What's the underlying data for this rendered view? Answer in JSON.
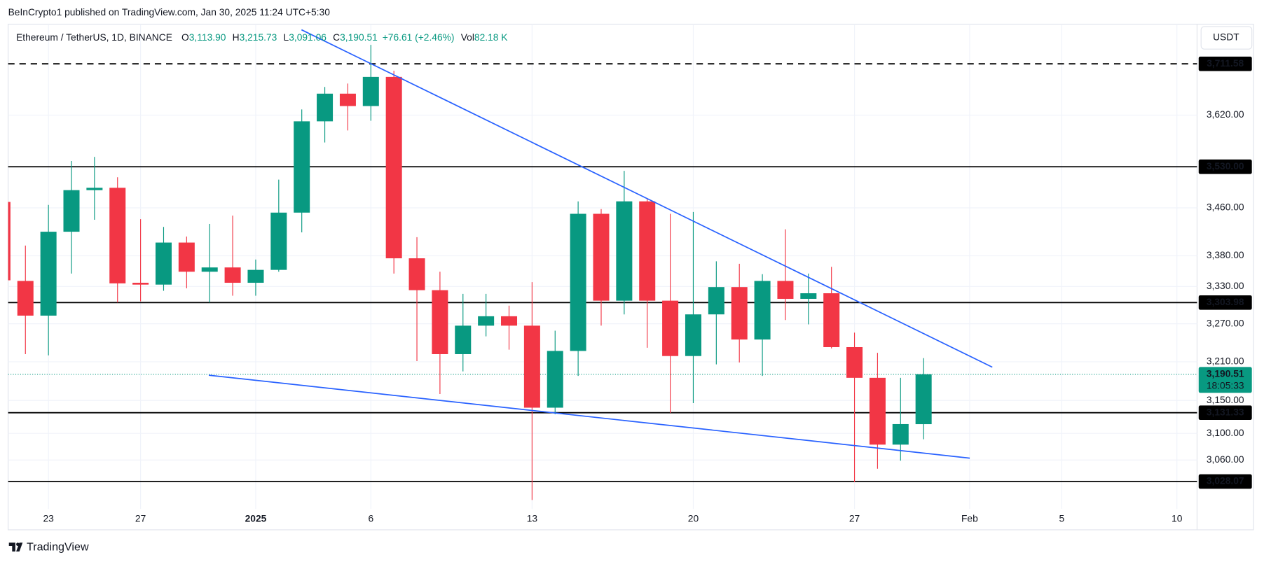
{
  "header": {
    "published": "BeInCrypto1 published on TradingView.com, Jan 30, 2025 11:24 UTC+5:30",
    "currency_button": "USDT",
    "brand": "TradingView"
  },
  "chart_data": {
    "type": "candlestick",
    "symbol": "Ethereum / TetherUS, 1D, BINANCE",
    "ohlc_legend": [
      {
        "key": "O",
        "value": "3,113.90"
      },
      {
        "key": "H",
        "value": "3,215.73"
      },
      {
        "key": "L",
        "value": "3,091.06"
      },
      {
        "key": "C",
        "value": "3,190.51"
      }
    ],
    "change": "+76.61 (+2.46%)",
    "volume": {
      "key": "Vol",
      "value": "82.18 K"
    },
    "categories": [
      null,
      null,
      "23",
      null,
      null,
      null,
      "27",
      null,
      null,
      null,
      null,
      "2025",
      null,
      null,
      null,
      null,
      "6",
      null,
      null,
      null,
      null,
      null,
      null,
      "13",
      null,
      null,
      null,
      null,
      null,
      null,
      "20",
      null,
      null,
      null,
      null,
      null,
      null,
      "27",
      null,
      null,
      null,
      null,
      "Feb",
      null,
      null,
      null,
      "5",
      null,
      null,
      null,
      null,
      "10"
    ],
    "open": [
      3470,
      3339,
      3283,
      3420,
      3490,
      3494,
      3336,
      3333,
      3402,
      3354,
      3361,
      3336,
      3357,
      3452,
      3609,
      3658,
      3636,
      3688,
      3376,
      3324,
      3222,
      3267,
      3282,
      3267,
      3139,
      3227,
      3450,
      3307,
      3471,
      3307,
      3219,
      3285,
      3329,
      3245,
      3339,
      3310,
      3319,
      3233,
      3185,
      3083,
      3113.9,
      null,
      null,
      null,
      null,
      null,
      null,
      null,
      null,
      null,
      null,
      null
    ],
    "high": [
      3480,
      3397,
      3465,
      3540,
      3547,
      3512,
      3441,
      3428,
      3412,
      3433,
      3447,
      3374,
      3508,
      3630,
      3670,
      3676,
      3746,
      3699,
      3411,
      3354,
      3318,
      3318,
      3299,
      3337,
      3259,
      3471,
      3458,
      3523,
      3476,
      3450,
      3453,
      3371,
      3367,
      3350,
      3424,
      3351,
      3362,
      3256,
      3224,
      3185,
      3215.73,
      null,
      null,
      null,
      null,
      null,
      null,
      null,
      null,
      null,
      null,
      null
    ],
    "low": [
      3300,
      3222,
      3220,
      3351,
      3440,
      3304,
      3306,
      3323,
      3327,
      3304,
      3315,
      3315,
      3354,
      3419,
      3572,
      3593,
      3610,
      3351,
      3211,
      3160,
      3195,
      3250,
      3229,
      3001,
      3129,
      3188,
      3267,
      3285,
      3232,
      3131,
      3146,
      3206,
      3209,
      3188,
      3276,
      3269,
      3231,
      3027,
      3047,
      3059,
      3091.06,
      null,
      null,
      null,
      null,
      null,
      null,
      null,
      null,
      null,
      null,
      null
    ],
    "close": [
      3340,
      3283,
      3420,
      3490,
      3494,
      3335,
      3333,
      3402,
      3354,
      3361,
      3336,
      3357,
      3452,
      3609,
      3658,
      3636,
      3688,
      3376,
      3324,
      3222,
      3267,
      3282,
      3267,
      3139,
      3227,
      3450,
      3307,
      3471,
      3307,
      3219,
      3285,
      3329,
      3245,
      3339,
      3310,
      3319,
      3233,
      3185,
      3083,
      3114,
      3190.51,
      null,
      null,
      null,
      null,
      null,
      null,
      null,
      null,
      null,
      null,
      null
    ],
    "up_color": "#089981",
    "down_color": "#f23645",
    "log_scale": true,
    "grid": true,
    "ylim": [
      2988,
      3784
    ],
    "yticks": [
      {
        "value": 3620,
        "label": "3,620.00"
      },
      {
        "value": 3460,
        "label": "3,460.00"
      },
      {
        "value": 3380,
        "label": "3,380.00"
      },
      {
        "value": 3330,
        "label": "3,330.00"
      },
      {
        "value": 3270,
        "label": "3,270.00"
      },
      {
        "value": 3210,
        "label": "3,210.00"
      },
      {
        "value": 3150,
        "label": "3,150.00"
      },
      {
        "value": 3100,
        "label": "3,100.00"
      },
      {
        "value": 3060,
        "label": "3,060.00"
      }
    ],
    "levels": [
      {
        "value": 3711.58,
        "label": "3,711.58",
        "style": "dashed"
      },
      {
        "value": 3530,
        "label": "3,530.00",
        "style": "solid"
      },
      {
        "value": 3303.98,
        "label": "3,303.98",
        "style": "solid"
      },
      {
        "value": 3131.33,
        "label": "3,131.33",
        "style": "solid"
      },
      {
        "value": 3028.07,
        "label": "3,028.07",
        "style": "solid"
      }
    ],
    "last_price": {
      "value": 3190.51,
      "label": "3,190.51",
      "countdown": "18:05:33"
    }
  }
}
